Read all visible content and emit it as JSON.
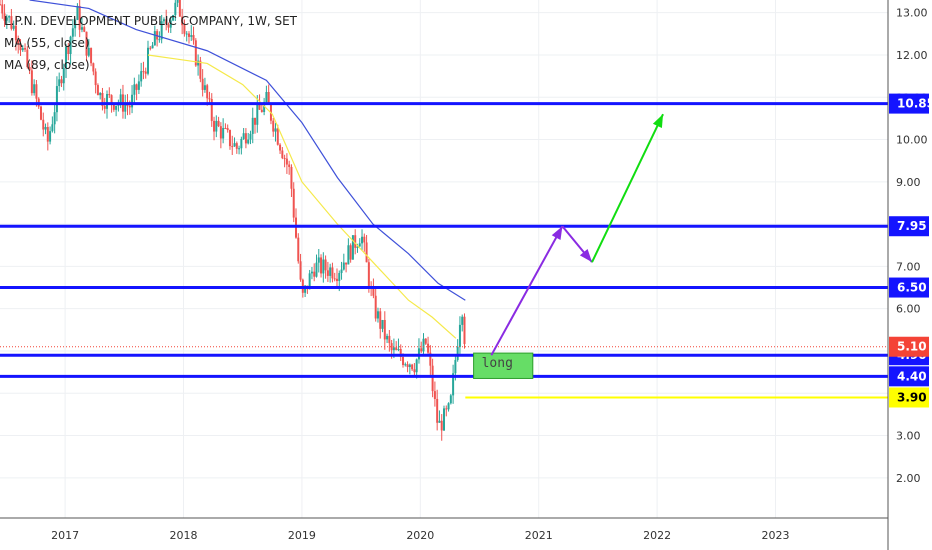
{
  "header": {
    "symbol_line": "L.P.N. DEVELOPMENT PUBLIC COMPANY, 1W, SET",
    "ma1": "MA (55, close)",
    "ma2": "MA (89, close)"
  },
  "colors": {
    "background": "#ffffff",
    "grid": "#eef0f3",
    "candle_up": "#26a69a",
    "candle_down": "#ef5350",
    "ma55": "#f5e94a",
    "ma89": "#3f51d9",
    "level_line": "#1414ff",
    "arrow_purple": "#8a2be2",
    "arrow_green": "#11dd11",
    "label_yellow": "#ffff00",
    "long_box": "#66dd66",
    "last_price": "#f44336"
  },
  "chart_data": {
    "type": "candlestick",
    "xlim": [
      2016.45,
      2023.95
    ],
    "ylim": [
      1.05,
      13.3
    ],
    "x_ticks": [
      {
        "label": "2017",
        "x": 2017.0
      },
      {
        "label": "2018",
        "x": 2018.0
      },
      {
        "label": "2019",
        "x": 2019.0
      },
      {
        "label": "2020",
        "x": 2020.0
      },
      {
        "label": "2021",
        "x": 2021.0
      },
      {
        "label": "2022",
        "x": 2022.0
      },
      {
        "label": "2023",
        "x": 2023.0
      }
    ],
    "y_ticks": [
      "2.00",
      "3.00",
      "4.00",
      "5.00",
      "6.00",
      "7.00",
      "8.00",
      "9.00",
      "10.00",
      "11.00",
      "12.00",
      "13.00"
    ],
    "close_path": [
      [
        2016.45,
        13.2
      ],
      [
        2016.6,
        12.5
      ],
      [
        2016.75,
        11.0
      ],
      [
        2016.85,
        9.9
      ],
      [
        2017.0,
        12.0
      ],
      [
        2017.1,
        13.0
      ],
      [
        2017.3,
        11.0
      ],
      [
        2017.55,
        10.8
      ],
      [
        2017.75,
        12.3
      ],
      [
        2017.95,
        13.2
      ],
      [
        2018.1,
        12.0
      ],
      [
        2018.25,
        10.4
      ],
      [
        2018.45,
        9.8
      ],
      [
        2018.6,
        10.5
      ],
      [
        2018.7,
        10.9
      ],
      [
        2018.9,
        9.2
      ],
      [
        2019.0,
        6.2
      ],
      [
        2019.1,
        7.0
      ],
      [
        2019.3,
        6.9
      ],
      [
        2019.5,
        7.8
      ],
      [
        2019.6,
        6.1
      ],
      [
        2019.75,
        5.0
      ],
      [
        2019.95,
        4.7
      ],
      [
        2020.05,
        5.2
      ],
      [
        2020.15,
        3.2
      ],
      [
        2020.25,
        3.6
      ],
      [
        2020.35,
        6.2
      ],
      [
        2020.38,
        5.1
      ]
    ],
    "ma55_path": [
      [
        2017.7,
        12.0
      ],
      [
        2017.95,
        11.9
      ],
      [
        2018.2,
        11.8
      ],
      [
        2018.5,
        11.3
      ],
      [
        2018.75,
        10.6
      ],
      [
        2019.0,
        9.0
      ],
      [
        2019.3,
        8.0
      ],
      [
        2019.6,
        7.1
      ],
      [
        2019.9,
        6.2
      ],
      [
        2020.1,
        5.8
      ],
      [
        2020.3,
        5.3
      ]
    ],
    "ma89_path": [
      [
        2016.7,
        13.3
      ],
      [
        2017.2,
        13.1
      ],
      [
        2017.6,
        12.6
      ],
      [
        2018.2,
        12.1
      ],
      [
        2018.7,
        11.4
      ],
      [
        2019.0,
        10.4
      ],
      [
        2019.3,
        9.1
      ],
      [
        2019.6,
        8.0
      ],
      [
        2019.9,
        7.3
      ],
      [
        2020.15,
        6.6
      ],
      [
        2020.38,
        6.2
      ]
    ],
    "levels": [
      {
        "price": 10.85,
        "label": "10.85"
      },
      {
        "price": 7.95,
        "label": "7.95"
      },
      {
        "price": 6.5,
        "label": "6.50"
      },
      {
        "price": 4.9,
        "label": "4.90"
      },
      {
        "price": 4.4,
        "label": "4.40"
      }
    ],
    "last_price": {
      "price": 5.1,
      "label": "5.10"
    },
    "yellow_level": {
      "price": 3.9,
      "label": "3.90",
      "x_start": 2020.38
    },
    "purple_arrow": [
      [
        2020.6,
        4.9
      ],
      [
        2021.2,
        7.95
      ],
      [
        2021.45,
        7.1
      ]
    ],
    "green_arrow": [
      [
        2021.45,
        7.1
      ],
      [
        2022.05,
        10.6
      ]
    ],
    "long_box": {
      "x0": 2020.45,
      "x1": 2020.95,
      "y0": 4.35,
      "y1": 4.95,
      "label": "long"
    }
  }
}
